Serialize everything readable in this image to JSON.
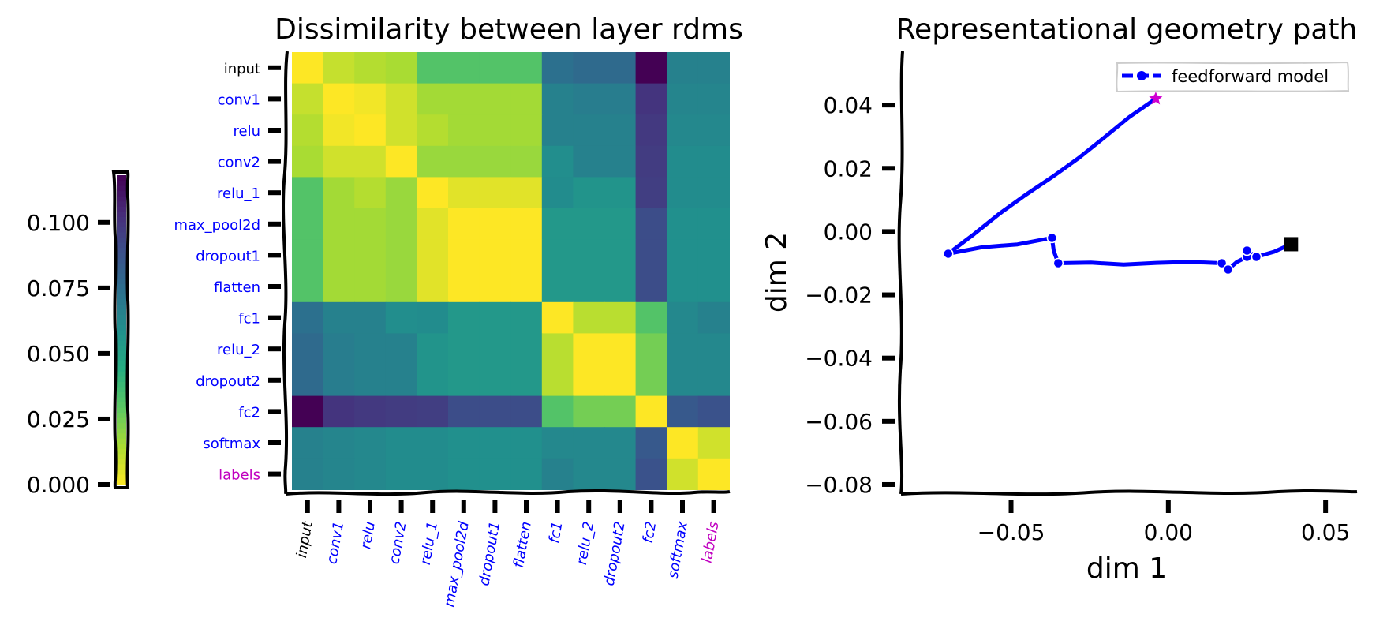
{
  "colors": {
    "input_label": "#000000",
    "layer_label": "#0000ff",
    "labels_label": "#c000c0",
    "path_line": "#0000ff",
    "start_marker": "#d000d0",
    "end_marker": "#000000"
  },
  "chart_data": [
    {
      "type": "heatmap",
      "title": "Dissimilarity between layer rdms",
      "rows": [
        "input",
        "conv1",
        "relu",
        "conv2",
        "relu_1",
        "max_pool2d",
        "dropout1",
        "flatten",
        "fc1",
        "relu_2",
        "dropout2",
        "fc2",
        "softmax",
        "labels"
      ],
      "columns": [
        "input",
        "conv1",
        "relu",
        "conv2",
        "relu_1",
        "max_pool2d",
        "dropout1",
        "flatten",
        "fc1",
        "relu_2",
        "dropout2",
        "fc2",
        "softmax",
        "labels"
      ],
      "label_color_keys": [
        "input_label",
        "layer_label",
        "layer_label",
        "layer_label",
        "layer_label",
        "layer_label",
        "layer_label",
        "layer_label",
        "layer_label",
        "layer_label",
        "layer_label",
        "layer_label",
        "layer_label",
        "labels_label"
      ],
      "colormap": "viridis_r",
      "vmin": 0,
      "vmax": 0.118,
      "values": [
        [
          0.0,
          0.01,
          0.013,
          0.015,
          0.032,
          0.032,
          0.032,
          0.032,
          0.074,
          0.077,
          0.077,
          0.118,
          0.066,
          0.066
        ],
        [
          0.01,
          0.0,
          0.002,
          0.008,
          0.016,
          0.016,
          0.016,
          0.016,
          0.066,
          0.068,
          0.068,
          0.1,
          0.064,
          0.064
        ],
        [
          0.013,
          0.002,
          0.0,
          0.008,
          0.013,
          0.016,
          0.016,
          0.016,
          0.066,
          0.066,
          0.066,
          0.098,
          0.063,
          0.063
        ],
        [
          0.015,
          0.008,
          0.008,
          0.0,
          0.018,
          0.018,
          0.018,
          0.018,
          0.06,
          0.066,
          0.066,
          0.097,
          0.061,
          0.061
        ],
        [
          0.032,
          0.016,
          0.013,
          0.018,
          0.0,
          0.005,
          0.005,
          0.005,
          0.061,
          0.057,
          0.057,
          0.096,
          0.061,
          0.061
        ],
        [
          0.032,
          0.016,
          0.016,
          0.018,
          0.005,
          0.0,
          0.0,
          0.0,
          0.055,
          0.055,
          0.055,
          0.09,
          0.059,
          0.059
        ],
        [
          0.032,
          0.016,
          0.016,
          0.018,
          0.005,
          0.0,
          0.0,
          0.0,
          0.055,
          0.055,
          0.055,
          0.09,
          0.059,
          0.059
        ],
        [
          0.032,
          0.016,
          0.016,
          0.018,
          0.005,
          0.0,
          0.0,
          0.0,
          0.055,
          0.055,
          0.055,
          0.09,
          0.059,
          0.059
        ],
        [
          0.074,
          0.066,
          0.066,
          0.06,
          0.061,
          0.055,
          0.055,
          0.055,
          0.0,
          0.012,
          0.012,
          0.032,
          0.063,
          0.066
        ],
        [
          0.077,
          0.068,
          0.066,
          0.066,
          0.057,
          0.055,
          0.055,
          0.055,
          0.012,
          0.0,
          0.0,
          0.025,
          0.063,
          0.063
        ],
        [
          0.077,
          0.068,
          0.066,
          0.066,
          0.057,
          0.055,
          0.055,
          0.055,
          0.012,
          0.0,
          0.0,
          0.025,
          0.063,
          0.063
        ],
        [
          0.118,
          0.1,
          0.098,
          0.097,
          0.096,
          0.09,
          0.09,
          0.09,
          0.032,
          0.025,
          0.025,
          0.0,
          0.085,
          0.088
        ],
        [
          0.066,
          0.064,
          0.063,
          0.061,
          0.061,
          0.059,
          0.059,
          0.059,
          0.063,
          0.063,
          0.063,
          0.085,
          0.0,
          0.008
        ],
        [
          0.066,
          0.064,
          0.063,
          0.061,
          0.061,
          0.059,
          0.059,
          0.059,
          0.066,
          0.063,
          0.063,
          0.088,
          0.008,
          0.0
        ]
      ],
      "colorbar": {
        "ticks": [
          0.0,
          0.025,
          0.05,
          0.075,
          0.1
        ],
        "tick_labels": [
          "0.000",
          "0.025",
          "0.050",
          "0.075",
          "0.100"
        ],
        "range": [
          0,
          0.118
        ]
      }
    },
    {
      "type": "line",
      "title": "Representational geometry path",
      "xlabel": "dim 1",
      "ylabel": "dim 2",
      "xlim": [
        -0.085,
        0.06
      ],
      "ylim": [
        -0.083,
        0.057
      ],
      "xticks": [
        -0.05,
        0.0,
        0.05
      ],
      "xtick_labels": [
        "−0.05",
        "0.00",
        "0.05"
      ],
      "yticks": [
        -0.08,
        -0.06,
        -0.04,
        -0.02,
        0.0,
        0.02,
        0.04
      ],
      "ytick_labels": [
        "−0.08",
        "−0.06",
        "−0.04",
        "−0.02",
        "0.00",
        "0.02",
        "0.04"
      ],
      "legend": "top-right",
      "series": [
        {
          "name": "feedforward model",
          "points": [
            {
              "x": -0.004,
              "y": 0.042,
              "layer": "input"
            },
            {
              "x": -0.07,
              "y": -0.007,
              "layer": "conv1"
            },
            {
              "x": -0.037,
              "y": -0.002,
              "layer": "relu"
            },
            {
              "x": -0.035,
              "y": -0.01,
              "layer": "conv2"
            },
            {
              "x": 0.017,
              "y": -0.01,
              "layer": "relu_1"
            },
            {
              "x": 0.019,
              "y": -0.012,
              "layer": "max_pool2d"
            },
            {
              "x": 0.025,
              "y": -0.008,
              "layer": "dropout1"
            },
            {
              "x": 0.025,
              "y": -0.006,
              "layer": "flatten"
            },
            {
              "x": 0.028,
              "y": -0.008,
              "layer": "fc1"
            },
            {
              "x": 0.039,
              "y": -0.004,
              "layer": "labels"
            }
          ]
        }
      ]
    }
  ]
}
